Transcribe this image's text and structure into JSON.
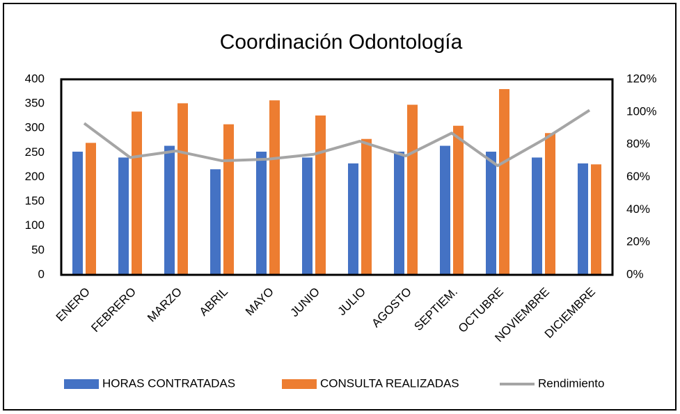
{
  "chart_data": {
    "type": "bar",
    "title": "Coordinación Odontología",
    "categories": [
      "ENERO",
      "FEBRERO",
      "MARZO",
      "ABRIL",
      "MAYO",
      "JUNIO",
      "JULIO",
      "AGOSTO",
      "SEPTIEM.",
      "OCTUBRE",
      "NOVIEMBRE",
      "DICIEMBRE"
    ],
    "series": [
      {
        "name": "HORAS CONTRATADAS",
        "color": "#4472c4",
        "type": "bar",
        "values": [
          252,
          240,
          264,
          216,
          252,
          240,
          228,
          252,
          264,
          252,
          240,
          228
        ]
      },
      {
        "name": "CONSULTA REALIZADAS",
        "color": "#ed7d31",
        "type": "bar",
        "values": [
          270,
          334,
          351,
          308,
          357,
          326,
          278,
          348,
          305,
          380,
          290,
          226
        ]
      },
      {
        "name": "Rendimiento",
        "color": "#a5a5a5",
        "type": "line",
        "axis": "y2",
        "values": [
          93,
          72,
          76,
          70,
          71,
          74,
          82,
          73,
          87,
          67,
          83,
          101
        ]
      }
    ],
    "ylim": [
      0,
      400
    ],
    "yticks": [
      0,
      50,
      100,
      150,
      200,
      250,
      300,
      350,
      400
    ],
    "y2lim": [
      0,
      120
    ],
    "y2ticks": [
      {
        "value": 0,
        "label": "0%"
      },
      {
        "value": 20,
        "label": "20%"
      },
      {
        "value": 40,
        "label": "40%"
      },
      {
        "value": 60,
        "label": "60%"
      },
      {
        "value": 80,
        "label": "80%"
      },
      {
        "value": 100,
        "label": "100%"
      },
      {
        "value": 120,
        "label": "120%"
      }
    ],
    "grid": false,
    "legend": "bottom"
  }
}
